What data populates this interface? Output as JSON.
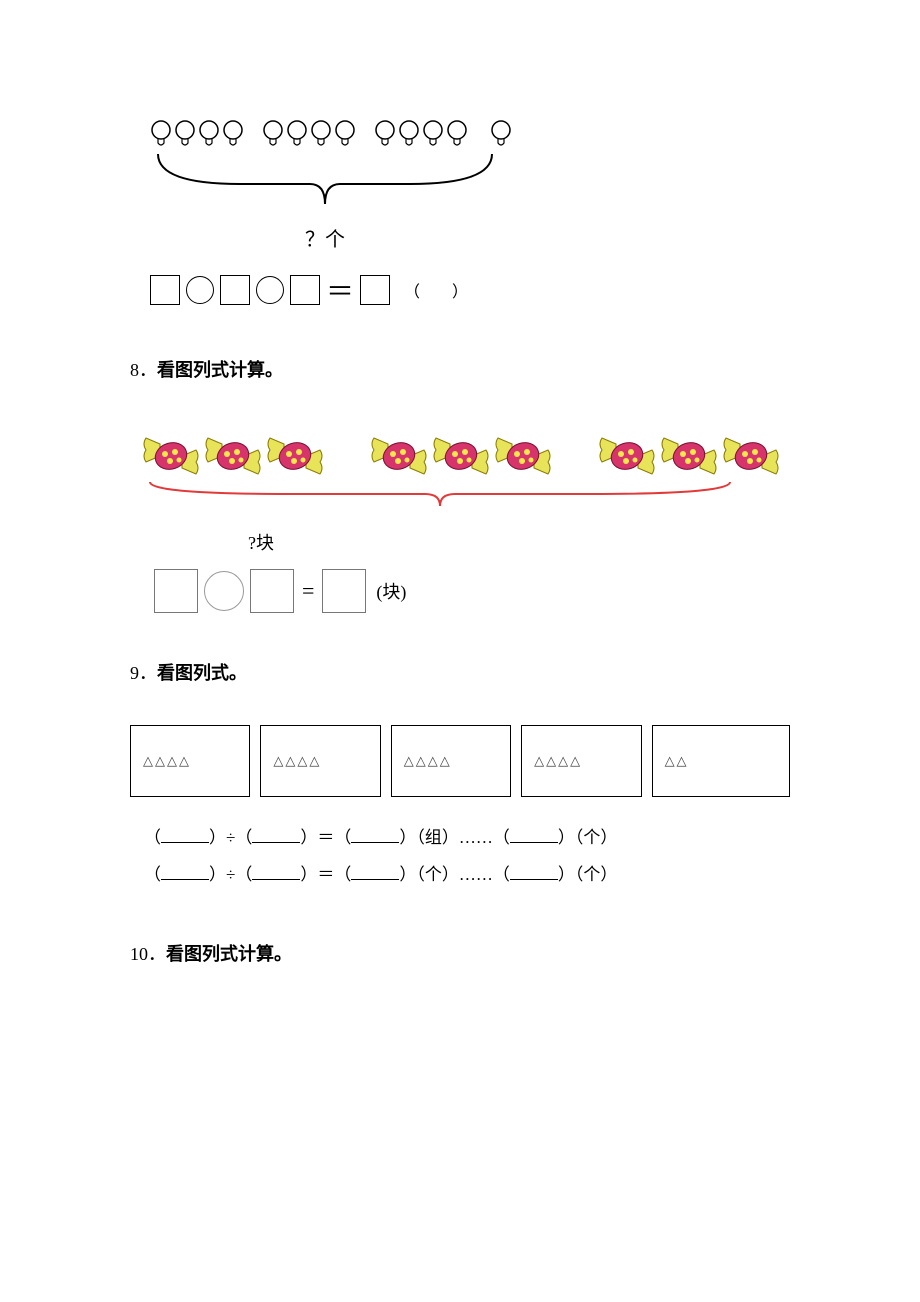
{
  "q7": {
    "groups": [
      4,
      4,
      4,
      1
    ],
    "caption": "？个",
    "paren": "（　　）"
  },
  "q8": {
    "heading_num": "8．",
    "heading_text": "看图列式计算。",
    "groups": [
      3,
      3,
      3
    ],
    "caption": "?块",
    "unit": "(块)"
  },
  "q9": {
    "heading_num": "9．",
    "heading_text": "看图列式。",
    "boxes": [
      {
        "triangles": 4,
        "width": 118
      },
      {
        "triangles": 4,
        "width": 118
      },
      {
        "triangles": 4,
        "width": 118
      },
      {
        "triangles": 4,
        "width": 118
      },
      {
        "triangles": 2,
        "width": 138
      }
    ],
    "line1": {
      "u1": "（组）",
      "dots": "……",
      "u2": "（个）"
    },
    "line2": {
      "u1": "（个）",
      "dots": "……",
      "u2": "（个）"
    }
  },
  "q10": {
    "heading_num": "10．",
    "heading_text": "看图列式计算。"
  },
  "colors": {
    "text": "#000000",
    "candy_body": "#d6346a",
    "candy_dot": "#f6e84a",
    "candy_wrap": "#e8e45a",
    "red_brace": "#e23a3a",
    "box_border": "#777777"
  }
}
